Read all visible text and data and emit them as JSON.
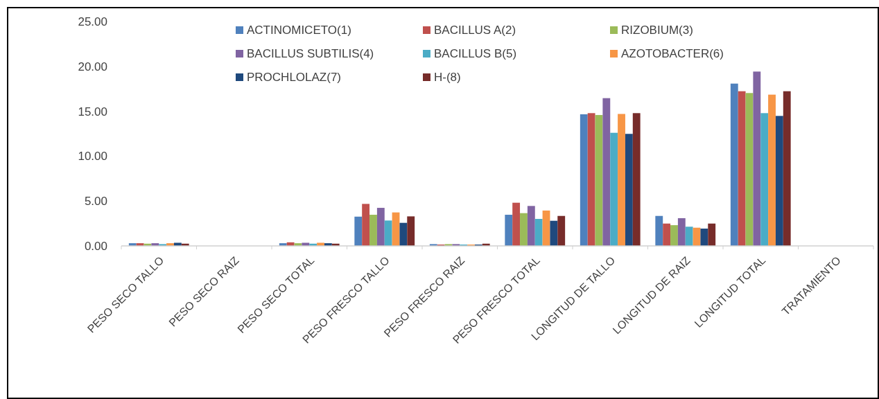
{
  "chart_data": {
    "type": "bar",
    "categories": [
      "PESO SECO TALLO",
      "PESO SECO RAIZ",
      "PESO SECO TOTAL",
      "PESO FRESCO TALLO",
      "PESO FRESCO RAIZ",
      "PESO FRESCO TOTAL",
      "LONGITUD DE TALLO",
      "LONGITUD DE RAIZ",
      "LONGITUD TOTAL",
      "TRATAMIENTO"
    ],
    "series": [
      {
        "name": "ACTINOMICETO(1)",
        "color": "#4f81bd",
        "values": [
          0.3,
          null,
          0.3,
          3.26,
          0.2,
          3.47,
          14.66,
          3.34,
          18.08,
          null
        ]
      },
      {
        "name": "BACILLUS A(2)",
        "color": "#c0504d",
        "values": [
          0.3,
          null,
          0.4,
          4.68,
          0.15,
          4.81,
          14.79,
          2.49,
          17.23,
          null
        ]
      },
      {
        "name": "RIZOBIUM(3)",
        "color": "#9bbb59",
        "values": [
          0.25,
          null,
          0.3,
          3.47,
          0.2,
          3.65,
          14.58,
          2.31,
          17.03,
          null
        ]
      },
      {
        "name": "BACILLUS SUBTILIS(4)",
        "color": "#8064a2",
        "values": [
          0.3,
          null,
          0.35,
          4.24,
          0.2,
          4.45,
          16.46,
          3.09,
          19.42,
          null
        ]
      },
      {
        "name": "BACILLUS B(5)",
        "color": "#4bacc6",
        "values": [
          0.2,
          null,
          0.25,
          2.83,
          0.15,
          3.01,
          12.6,
          2.14,
          14.79,
          null
        ]
      },
      {
        "name": "AZOTOBACTER(6)",
        "color": "#f79646",
        "values": [
          0.3,
          null,
          0.35,
          3.73,
          0.15,
          3.94,
          14.7,
          2.03,
          16.85,
          null
        ]
      },
      {
        "name": "PROCHLOLAZ(7)",
        "color": "#1f497d",
        "values": [
          0.35,
          null,
          0.3,
          2.57,
          0.15,
          2.8,
          12.48,
          1.93,
          14.48,
          null
        ]
      },
      {
        "name": "H-(8)",
        "color": "#772c2a",
        "values": [
          0.25,
          null,
          0.25,
          3.29,
          0.25,
          3.34,
          14.79,
          2.49,
          17.23,
          null
        ]
      }
    ],
    "ylim": [
      0,
      25
    ],
    "yticks": [
      {
        "value": 0,
        "label": "0.00"
      },
      {
        "value": 5,
        "label": "5.00"
      },
      {
        "value": 10,
        "label": "10.00"
      },
      {
        "value": 15,
        "label": "15.00"
      },
      {
        "value": 20,
        "label": "20.00"
      },
      {
        "value": 25,
        "label": "25.00"
      }
    ],
    "grid": false,
    "legend": "top"
  }
}
